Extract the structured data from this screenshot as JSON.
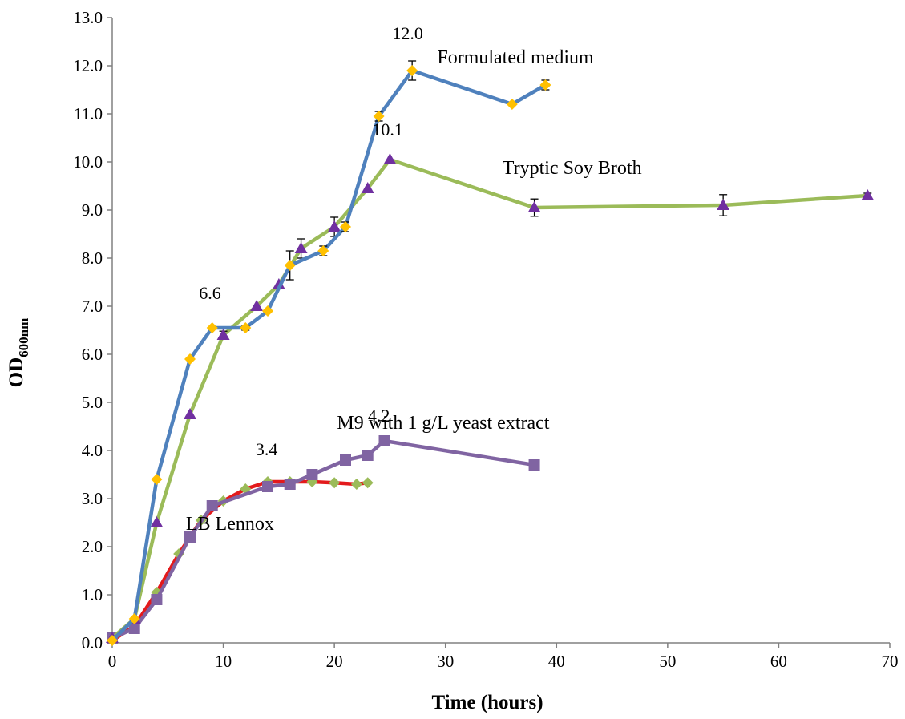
{
  "chart_data": {
    "type": "line",
    "xlabel": "Time (hours)",
    "ylabel_main": "OD",
    "ylabel_sub": "600nm",
    "xlim": [
      0,
      70
    ],
    "ylim": [
      0,
      13
    ],
    "x_ticks": [
      "0",
      "10",
      "20",
      "30",
      "40",
      "50",
      "60",
      "70"
    ],
    "y_ticks": [
      "0.0",
      "1.0",
      "2.0",
      "3.0",
      "4.0",
      "5.0",
      "6.0",
      "7.0",
      "8.0",
      "9.0",
      "10.0",
      "11.0",
      "12.0",
      "13.0"
    ],
    "grid": false,
    "series": [
      {
        "name": "Tryptic Soy Broth",
        "line_color": "#9BBB59",
        "marker": "triangle",
        "marker_color": "#7030A0",
        "x": [
          0,
          2,
          4,
          7,
          10,
          13,
          15,
          17,
          20,
          23,
          25,
          38,
          55,
          68
        ],
        "y": [
          0.1,
          0.5,
          2.5,
          4.75,
          6.4,
          7.0,
          7.45,
          8.2,
          8.65,
          9.45,
          10.05,
          9.05,
          9.1,
          9.3
        ],
        "err": [
          0,
          0,
          0,
          0,
          0.08,
          0,
          0,
          0.2,
          0.2,
          0,
          0,
          0.18,
          0.22,
          0.05
        ]
      },
      {
        "name": "Formulated medium",
        "line_color": "#4F81BD",
        "marker": "diamond",
        "marker_color": "#FFC000",
        "x": [
          0,
          2,
          4,
          7,
          9,
          12,
          14,
          16,
          19,
          21,
          24,
          27,
          36,
          39
        ],
        "y": [
          0.05,
          0.5,
          3.4,
          5.9,
          6.55,
          6.55,
          6.9,
          7.85,
          8.15,
          8.65,
          10.95,
          11.9,
          11.2,
          11.6
        ],
        "err": [
          0,
          0,
          0,
          0,
          0,
          0.05,
          0,
          0.3,
          0.1,
          0.1,
          0.1,
          0.2,
          0,
          0.1
        ]
      },
      {
        "name": "LB Lennox",
        "line_color": "#E31A1C",
        "marker": "diamond",
        "marker_color": "#9BBB59",
        "x": [
          0,
          2,
          4,
          6,
          8,
          10,
          12,
          14,
          16,
          18,
          20,
          22,
          23
        ],
        "y": [
          0.05,
          0.35,
          1.05,
          1.85,
          2.55,
          2.95,
          3.2,
          3.35,
          3.35,
          3.35,
          3.33,
          3.3,
          3.33
        ],
        "err": []
      },
      {
        "name": "M9 with 1 g/L yeast extract",
        "line_color": "#8064A2",
        "marker": "square",
        "marker_color": "#8064A2",
        "x": [
          0,
          2,
          4,
          7,
          9,
          14,
          16,
          18,
          21,
          23,
          24.5,
          38
        ],
        "y": [
          0.1,
          0.3,
          0.9,
          2.2,
          2.85,
          3.25,
          3.3,
          3.5,
          3.8,
          3.9,
          4.2,
          3.7
        ],
        "err": []
      }
    ],
    "annotations": [
      {
        "text": "12.0",
        "x": 26.6,
        "y": 12.55
      },
      {
        "text": "10.1",
        "x": 24.8,
        "y": 10.55
      },
      {
        "text": "6.6",
        "x": 8.8,
        "y": 7.15
      },
      {
        "text": "4.2",
        "x": 24.0,
        "y": 4.6
      },
      {
        "text": "3.4",
        "x": 13.9,
        "y": 3.9
      }
    ],
    "series_labels": [
      {
        "text": "Formulated medium",
        "x": 36.3,
        "y": 12.05
      },
      {
        "text": "Tryptic Soy Broth",
        "x": 41.4,
        "y": 9.75
      },
      {
        "text": "M9 with 1 g/L yeast extract",
        "x": 29.8,
        "y": 4.45
      },
      {
        "text": "LB Lennox",
        "x": 10.6,
        "y": 2.35
      }
    ]
  }
}
